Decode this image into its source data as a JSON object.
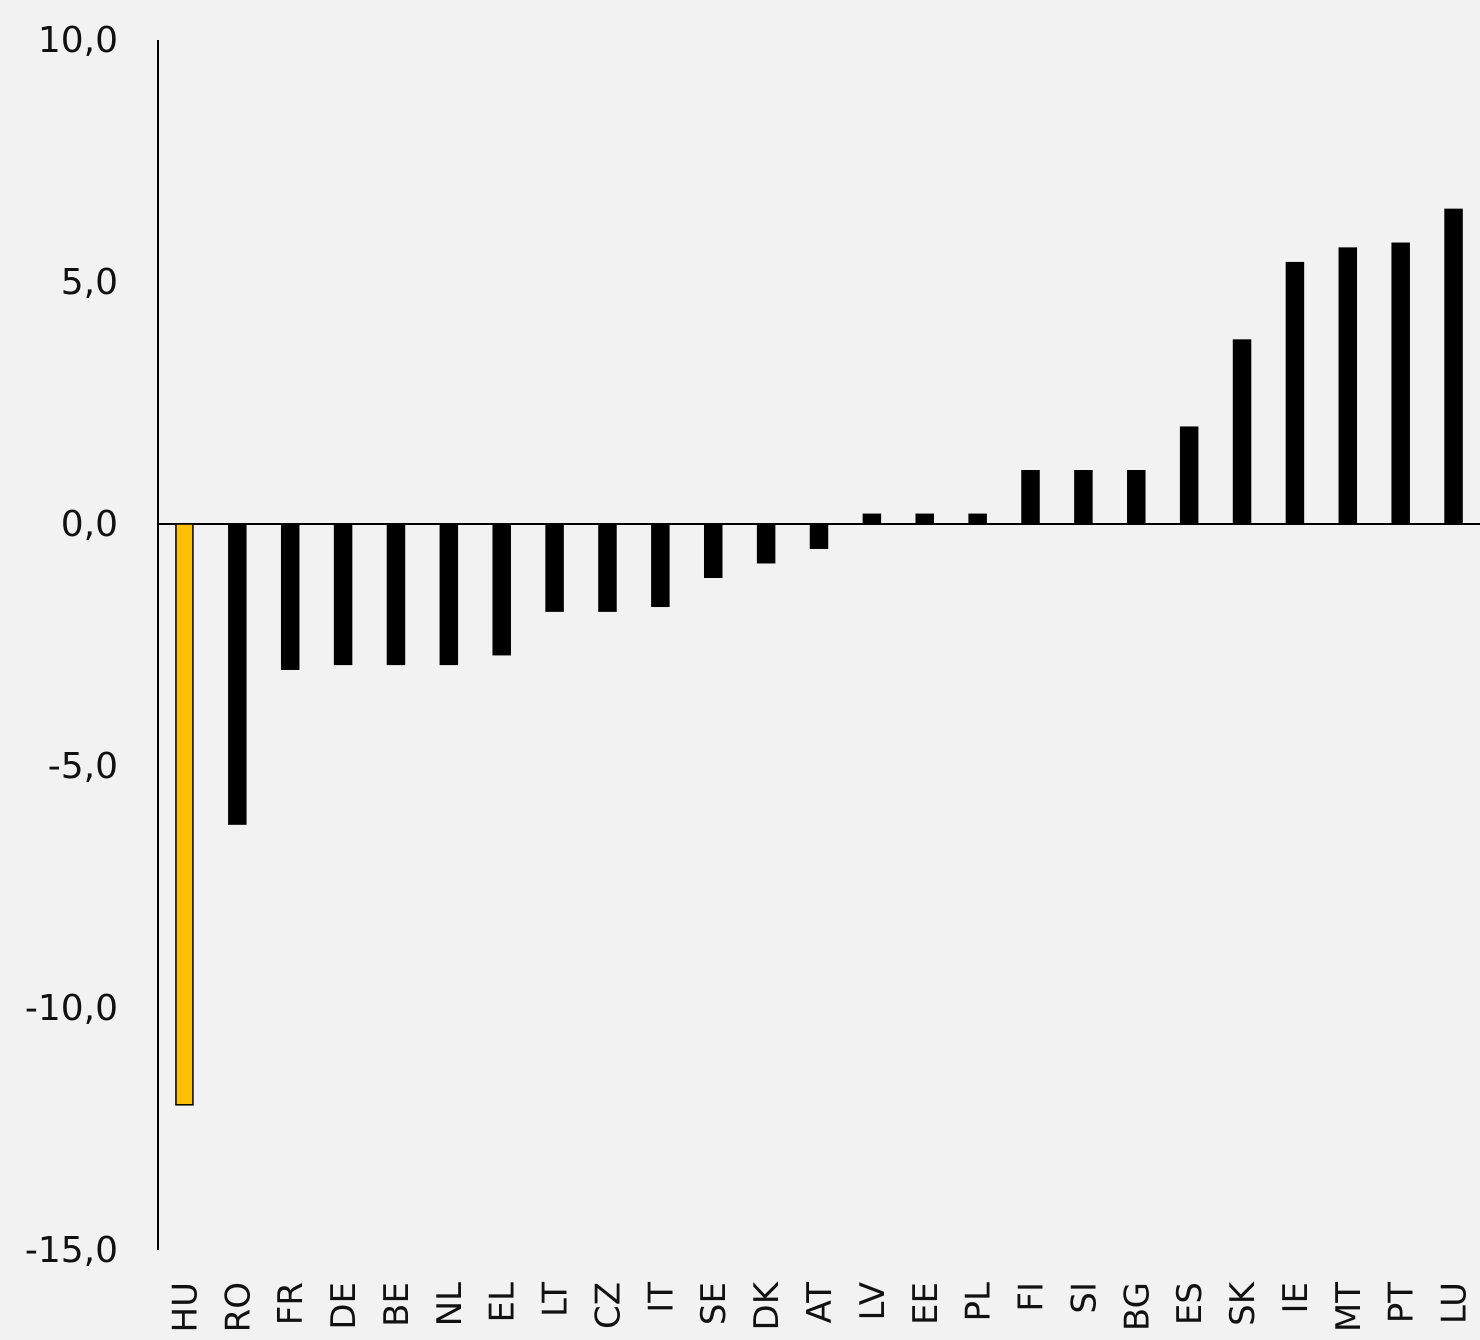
{
  "chart_data": {
    "type": "bar",
    "categories": [
      "HU",
      "RO",
      "FR",
      "DE",
      "BE",
      "NL",
      "EL",
      "LT",
      "CZ",
      "IT",
      "SE",
      "DK",
      "AT",
      "LV",
      "EE",
      "PL",
      "FI",
      "SI",
      "BG",
      "ES",
      "SK",
      "IE",
      "MT",
      "PT",
      "LU"
    ],
    "values": [
      -12.0,
      -6.2,
      -3.0,
      -2.9,
      -2.9,
      -2.9,
      -2.7,
      -1.8,
      -1.8,
      -1.7,
      -1.1,
      -0.8,
      -0.5,
      0.2,
      0.2,
      0.2,
      1.1,
      1.1,
      1.1,
      2.0,
      3.8,
      5.4,
      5.7,
      5.8,
      6.5
    ],
    "highlight": "HU",
    "ylim": [
      -15,
      10
    ],
    "yticks": [
      10,
      5,
      0,
      -5,
      -10,
      -15
    ],
    "ytick_labels": [
      "10,0",
      "5,0",
      "0,0",
      "-5,0",
      "-10,0",
      "-15,0"
    ],
    "colors": {
      "bar": "#000000",
      "highlight": "#ffc000",
      "background": "#f2f2f2"
    }
  }
}
